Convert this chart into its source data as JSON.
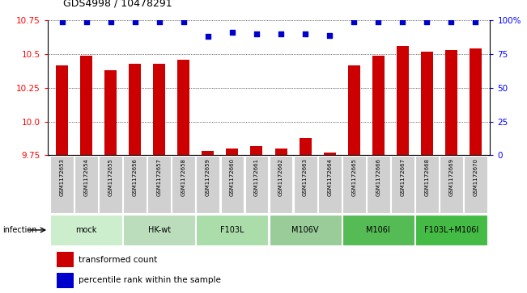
{
  "title": "GDS4998 / 10478291",
  "samples": [
    "GSM1172653",
    "GSM1172654",
    "GSM1172655",
    "GSM1172656",
    "GSM1172657",
    "GSM1172658",
    "GSM1172659",
    "GSM1172660",
    "GSM1172661",
    "GSM1172662",
    "GSM1172663",
    "GSM1172664",
    "GSM1172665",
    "GSM1172666",
    "GSM1172667",
    "GSM1172668",
    "GSM1172669",
    "GSM1172670"
  ],
  "bar_values": [
    10.42,
    10.49,
    10.38,
    10.43,
    10.43,
    10.46,
    9.78,
    9.8,
    9.82,
    9.8,
    9.88,
    9.77,
    10.42,
    10.49,
    10.56,
    10.52,
    10.53,
    10.54
  ],
  "percentile_values": [
    99,
    99,
    99,
    99,
    99,
    99,
    88,
    91,
    90,
    90,
    90,
    89,
    99,
    99,
    99,
    99,
    99,
    99
  ],
  "ylim_left": [
    9.75,
    10.75
  ],
  "ylim_right": [
    0,
    100
  ],
  "yticks_left": [
    9.75,
    10.0,
    10.25,
    10.5,
    10.75
  ],
  "ytick_right_values": [
    0,
    25,
    50,
    75,
    100
  ],
  "ytick_right_labels": [
    "0",
    "25",
    "50",
    "75",
    "100%"
  ],
  "group_data": [
    {
      "label": "mock",
      "indices": [
        0,
        1,
        2
      ],
      "color": "#cceecc"
    },
    {
      "label": "HK-wt",
      "indices": [
        3,
        4,
        5
      ],
      "color": "#bbddbb"
    },
    {
      "label": "F103L",
      "indices": [
        6,
        7,
        8
      ],
      "color": "#aaddaa"
    },
    {
      "label": "M106V",
      "indices": [
        9,
        10,
        11
      ],
      "color": "#99cc99"
    },
    {
      "label": "M106I",
      "indices": [
        12,
        13,
        14
      ],
      "color": "#55bb55"
    },
    {
      "label": "F103L+M106I",
      "indices": [
        15,
        16,
        17
      ],
      "color": "#44bb44"
    }
  ],
  "bar_color": "#cc0000",
  "dot_color": "#0000cc",
  "legend_bar_label": "transformed count",
  "legend_dot_label": "percentile rank within the sample",
  "infection_label": "infection"
}
